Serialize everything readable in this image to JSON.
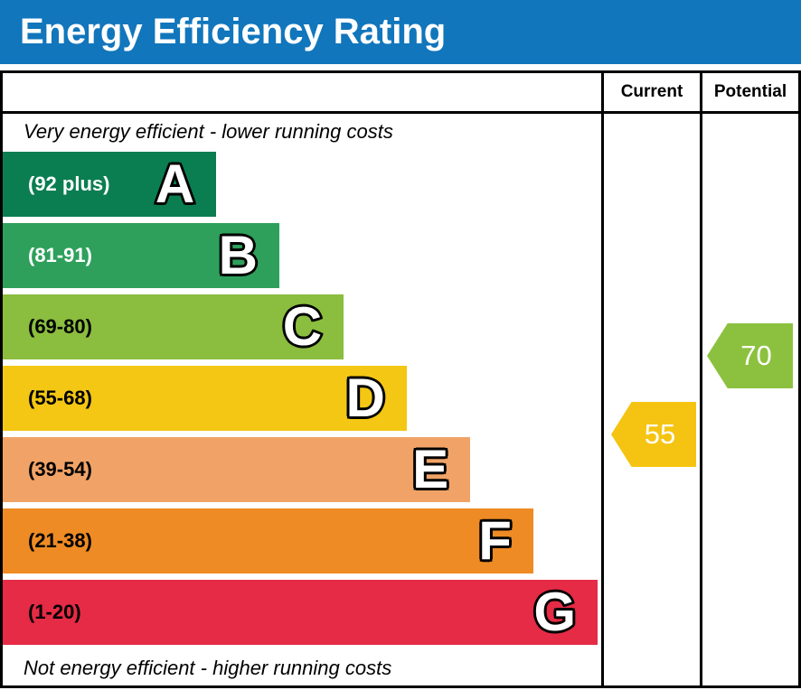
{
  "title": "Energy Efficiency Rating",
  "header": {
    "current": "Current",
    "potential": "Potential"
  },
  "captions": {
    "top": "Very energy efficient - lower running costs",
    "bottom": "Not energy efficient - higher running costs"
  },
  "bands": [
    {
      "letter": "A",
      "range": "(92 plus)",
      "color": "#0b7e51",
      "label_color": "#ffffff",
      "width_pct": 35.9
    },
    {
      "letter": "B",
      "range": "(81-91)",
      "color": "#2ea05b",
      "label_color": "#ffffff",
      "width_pct": 46.5
    },
    {
      "letter": "C",
      "range": "(69-80)",
      "color": "#8bbd3f",
      "label_color": "#000000",
      "width_pct": 57.3
    },
    {
      "letter": "D",
      "range": "(55-68)",
      "color": "#f3c713",
      "label_color": "#000000",
      "width_pct": 67.9
    },
    {
      "letter": "E",
      "range": "(39-54)",
      "color": "#f1a367",
      "label_color": "#000000",
      "width_pct": 78.6
    },
    {
      "letter": "F",
      "range": "(21-38)",
      "color": "#ee8b24",
      "label_color": "#000000",
      "width_pct": 89.2
    },
    {
      "letter": "G",
      "range": "(1-20)",
      "color": "#e52b45",
      "label_color": "#000000",
      "width_pct": 100
    }
  ],
  "current": {
    "value": "55",
    "color": "#f5c412"
  },
  "potential": {
    "value": "70",
    "color": "#8cc13f"
  },
  "colors": {
    "title_bar": "#1176bc",
    "border": "#000000"
  },
  "chart_data": {
    "type": "bar",
    "title": "Energy Efficiency Rating",
    "categories": [
      "A (92 plus)",
      "B (81-91)",
      "C (69-80)",
      "D (55-68)",
      "E (39-54)",
      "F (21-38)",
      "G (1-20)"
    ],
    "band_colors": [
      "#0b7e51",
      "#2ea05b",
      "#8bbd3f",
      "#f3c713",
      "#f1a367",
      "#ee8b24",
      "#e52b45"
    ],
    "band_bar_length_pct": [
      35.9,
      46.5,
      57.3,
      67.9,
      78.6,
      89.2,
      100
    ],
    "series": [
      {
        "name": "Current",
        "value": 55,
        "band": "D",
        "marker_color": "#f5c412"
      },
      {
        "name": "Potential",
        "value": 70,
        "band": "C",
        "marker_color": "#8cc13f"
      }
    ],
    "value_range": [
      1,
      100
    ],
    "annotations": [
      "Very energy efficient - lower running costs",
      "Not energy efficient - higher running costs"
    ],
    "legend_position": "none",
    "grid": false
  }
}
